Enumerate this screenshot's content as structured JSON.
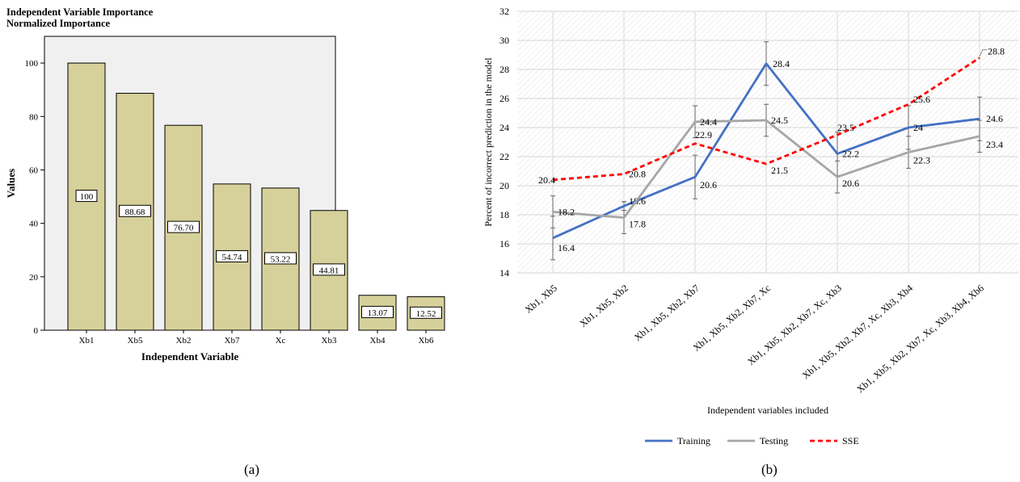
{
  "panels": {
    "a_label": "(a)",
    "b_label": "(b)"
  },
  "chart_data": [
    {
      "type": "bar",
      "title": "Independent Variable Importance",
      "subtitle": "Normalized Importance",
      "xlabel": "Independent Variable",
      "ylabel": "Values",
      "categories": [
        "Xb1",
        "Xb5",
        "Xb2",
        "Xb7",
        "Xc",
        "Xb3",
        "Xb4",
        "Xb6"
      ],
      "values": [
        100,
        88.68,
        76.7,
        54.74,
        53.22,
        44.81,
        13.07,
        12.52
      ],
      "value_labels": [
        "100",
        "88.68",
        "76.70",
        "54.74",
        "53.22",
        "44.81",
        "13.07",
        "12.52"
      ],
      "ylim": [
        0,
        110
      ],
      "yticks": [
        0,
        20,
        40,
        60,
        80,
        100
      ],
      "bar_color": "#d6d19a",
      "plot_bg": "#f0f0f0"
    },
    {
      "type": "line",
      "xlabel": "Independent variables included",
      "ylabel": "Percent of incorrect prediction in the model",
      "categories": [
        "Xb1, Xb5",
        "Xb1, Xb5, Xb2",
        "Xb1, Xb5, Xb2, Xb7",
        "Xb1, Xb5, Xb2, Xb7, Xc",
        "Xb1, Xb5, Xb2, Xb7, Xc, Xb3",
        "Xb1, Xb5, Xb2, Xb7, Xc, Xb3, Xb4",
        "Xb1, Xb5, Xb2, Xb7, Xc, Xb3, Xb4, Xb6"
      ],
      "ylim": [
        14,
        32
      ],
      "yticks": [
        14,
        16,
        18,
        20,
        22,
        24,
        26,
        28,
        30,
        32
      ],
      "legend_position": "bottom",
      "series": [
        {
          "name": "Training",
          "color": "#4472c4",
          "dash": "",
          "values": [
            16.4,
            18.6,
            20.6,
            28.4,
            22.2,
            24,
            24.6
          ],
          "labels": [
            "16.4",
            "18.6",
            "20.6",
            "28.4",
            "22.2",
            "24",
            "24.6"
          ],
          "error": [
            1.5,
            0.3,
            1.5,
            1.5,
            1.5,
            1.5,
            1.5
          ]
        },
        {
          "name": "Testing",
          "color": "#a6a6a6",
          "dash": "",
          "values": [
            18.2,
            17.8,
            24.4,
            24.5,
            20.6,
            22.3,
            23.4
          ],
          "labels": [
            "18.2",
            "17.8",
            "24.4",
            "24.5",
            "20.6",
            "22.3",
            "23.4"
          ],
          "error": [
            1.1,
            1.1,
            1.1,
            1.1,
            1.1,
            1.1,
            1.1
          ]
        },
        {
          "name": "SSE",
          "color": "#ff0000",
          "dash": "6,4",
          "values": [
            20.4,
            20.8,
            22.9,
            21.5,
            23.5,
            25.6,
            28.8
          ],
          "labels": [
            "20.4",
            "20.8",
            "22.9",
            "21.5",
            "23.5",
            "25.6",
            "28.8"
          ]
        }
      ]
    }
  ]
}
